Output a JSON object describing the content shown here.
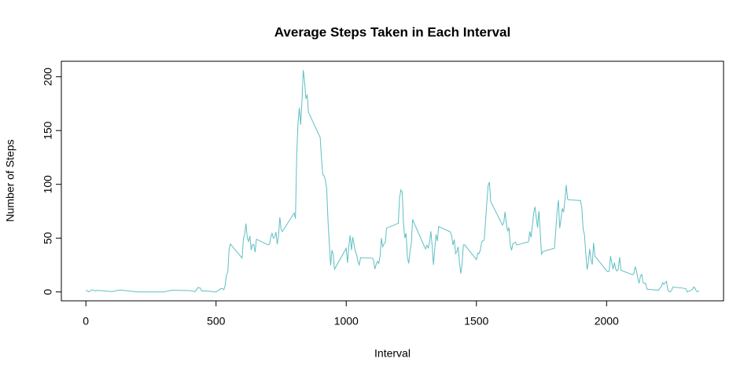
{
  "chart_data": {
    "type": "line",
    "title": "Average Steps Taken in Each Interval",
    "xlabel": "Interval",
    "ylabel": "Number of Steps",
    "color": "#5fbfc4",
    "xlim": [
      -94.2,
      2449.2
    ],
    "ylim": [
      -8.25,
      214.4
    ],
    "xticks": [
      0,
      500,
      1000,
      1500,
      2000
    ],
    "yticks": [
      0,
      50,
      100,
      150,
      200
    ],
    "x": [
      0,
      10,
      25,
      35,
      45,
      100,
      130,
      200,
      230,
      300,
      330,
      400,
      420,
      430,
      440,
      445,
      455,
      500,
      520,
      525,
      530,
      535,
      540,
      545,
      550,
      555,
      600,
      605,
      610,
      615,
      620,
      625,
      630,
      635,
      640,
      645,
      650,
      655,
      700,
      705,
      710,
      715,
      720,
      725,
      730,
      735,
      740,
      745,
      750,
      755,
      800,
      805,
      810,
      815,
      820,
      825,
      830,
      835,
      840,
      845,
      850,
      855,
      900,
      905,
      910,
      915,
      920,
      925,
      930,
      935,
      940,
      945,
      950,
      955,
      1000,
      1005,
      1010,
      1015,
      1020,
      1025,
      1030,
      1035,
      1040,
      1045,
      1050,
      1055,
      1100,
      1105,
      1110,
      1115,
      1120,
      1125,
      1130,
      1135,
      1140,
      1145,
      1150,
      1155,
      1200,
      1205,
      1210,
      1215,
      1220,
      1225,
      1230,
      1235,
      1240,
      1245,
      1250,
      1255,
      1300,
      1305,
      1310,
      1315,
      1320,
      1325,
      1330,
      1335,
      1340,
      1345,
      1350,
      1355,
      1400,
      1405,
      1410,
      1415,
      1420,
      1425,
      1430,
      1435,
      1440,
      1445,
      1450,
      1455,
      1500,
      1505,
      1510,
      1515,
      1520,
      1525,
      1530,
      1535,
      1540,
      1545,
      1550,
      1555,
      1600,
      1605,
      1610,
      1615,
      1620,
      1625,
      1630,
      1635,
      1640,
      1645,
      1650,
      1655,
      1700,
      1705,
      1710,
      1715,
      1720,
      1725,
      1730,
      1735,
      1740,
      1745,
      1750,
      1755,
      1800,
      1805,
      1810,
      1815,
      1820,
      1825,
      1830,
      1835,
      1840,
      1845,
      1850,
      1855,
      1900,
      1905,
      1910,
      1915,
      1920,
      1925,
      1930,
      1935,
      1940,
      1945,
      1950,
      1955,
      2000,
      2005,
      2010,
      2015,
      2020,
      2025,
      2030,
      2035,
      2040,
      2045,
      2050,
      2055,
      2100,
      2105,
      2110,
      2115,
      2120,
      2125,
      2130,
      2135,
      2140,
      2145,
      2150,
      2155,
      2200,
      2205,
      2210,
      2215,
      2220,
      2225,
      2230,
      2235,
      2240,
      2245,
      2250,
      2255,
      2300,
      2305,
      2310,
      2315,
      2320,
      2325,
      2330,
      2335,
      2340,
      2345,
      2350,
      2355
    ],
    "values": [
      1.7,
      0.1,
      2.1,
      0.9,
      1.5,
      0.3,
      1.8,
      0,
      0,
      0,
      1.6,
      1.2,
      0.3,
      4.1,
      3.5,
      0.8,
      1.1,
      0,
      3.3,
      2.9,
      2.1,
      6.1,
      16,
      18.3,
      39.5,
      44.5,
      31.5,
      49.3,
      53.8,
      63.5,
      50,
      47,
      52,
      39,
      44,
      44,
      37,
      49,
      43.8,
      44.4,
      50.5,
      54.5,
      49.9,
      51,
      55.7,
      44.3,
      52.3,
      69.5,
      57.8,
      56.2,
      73.4,
      68.2,
      129.4,
      157.5,
      171.2,
      155.4,
      177.3,
      206.2,
      195.9,
      179.6,
      183.4,
      167,
      143.5,
      124,
      109,
      108,
      103.7,
      96,
      66.2,
      45.2,
      24.8,
      38.8,
      35,
      21.1,
      40.6,
      27,
      42.4,
      52.7,
      38.9,
      50.8,
      44.3,
      37.4,
      34.7,
      28.3,
      25.1,
      31.9,
      31.4,
      29.7,
      21.3,
      25.5,
      28.4,
      26.5,
      33.4,
      50,
      42,
      44.6,
      46,
      59.2,
      63.9,
      87.7,
      94.8,
      92.8,
      63.4,
      50.2,
      54.5,
      32.4,
      26.5,
      37.7,
      45.1,
      67.3,
      42.3,
      39.9,
      43.3,
      41,
      46.2,
      56.4,
      42.8,
      25.1,
      40,
      53.5,
      47.3,
      60.8,
      55.8,
      52,
      43.6,
      48.7,
      35.5,
      37.5,
      41.8,
      27.5,
      17.1,
      26.1,
      43.6,
      43.8,
      30,
      36.1,
      35.5,
      38.8,
      46,
      47.7,
      48.1,
      65.3,
      82.9,
      98.7,
      102.1,
      84,
      62.1,
      64.1,
      74.5,
      63.2,
      56.9,
      59.8,
      43.9,
      38.6,
      44.7,
      45.5,
      46.2,
      43.7,
      46.6,
      56.3,
      50.7,
      61.2,
      73.4,
      79.1,
      68.9,
      59.7,
      75.1,
      56.5,
      34.8,
      37.5,
      40.7,
      58,
      74.7,
      85.3,
      59.3,
      67.8,
      77.7,
      74.2,
      85.3,
      99.5,
      86.6,
      85.6,
      84.9,
      77.8,
      58,
      53.4,
      36.3,
      20.7,
      27.4,
      40,
      30.2,
      25.5,
      45.7,
      33.5,
      19.6,
      19,
      19.3,
      33.3,
      26.8,
      21.2,
      27.3,
      21.3,
      19.5,
      21.3,
      32.3,
      20.2,
      15.9,
      17.2,
      23.5,
      19.2,
      12.5,
      8,
      14.7,
      16.3,
      8.7,
      7.8,
      8.1,
      2.6,
      1.5,
      3.7,
      4.8,
      8.5,
      7.1,
      8.7,
      9.8,
      2.2,
      0.3,
      0.1,
      1.6,
      4.6,
      3.3,
      2.8,
      0,
      0.8,
      1,
      1.6,
      2.6,
      4.7,
      3.3,
      0.6,
      0.2,
      1.1
    ]
  }
}
